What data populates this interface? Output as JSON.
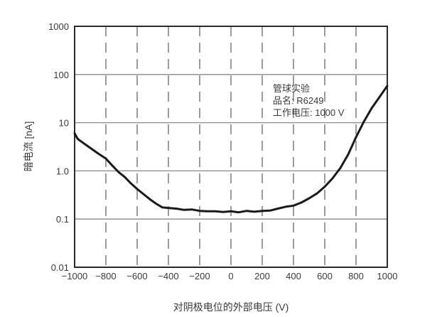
{
  "chart_data": {
    "type": "line",
    "title": "",
    "xlabel": "对阴极电位的外部电压 (V)",
    "ylabel": "暗电流 [nA]",
    "xlim": [
      -1000,
      1000
    ],
    "ylim": [
      0.01,
      1000
    ],
    "yscale": "log",
    "grid": {
      "x": "dashed",
      "y": "solid"
    },
    "xticks": [
      -1000,
      -800,
      -600,
      -400,
      -200,
      0,
      200,
      400,
      600,
      800,
      1000
    ],
    "xtick_labels": [
      "−1000",
      "−800",
      "−600",
      "−400",
      "−200",
      "0",
      "200",
      "400",
      "600",
      "800",
      "1000"
    ],
    "yticks": [
      0.01,
      0.1,
      1.0,
      10,
      100,
      1000
    ],
    "ytick_labels": [
      "0.01",
      "0.1",
      "1.0",
      "10",
      "100",
      "1000"
    ],
    "annotation": {
      "lines": [
        "管球实验",
        "品名: R6249",
        "工作电压: 1000 V"
      ]
    },
    "series": [
      {
        "name": "R6249 dark current",
        "x": [
          -1000,
          -980,
          -950,
          -900,
          -850,
          -800,
          -760,
          -720,
          -680,
          -640,
          -600,
          -560,
          -520,
          -480,
          -440,
          -400,
          -350,
          -300,
          -250,
          -200,
          -150,
          -100,
          -50,
          0,
          50,
          100,
          150,
          200,
          250,
          300,
          350,
          400,
          450,
          500,
          550,
          600,
          650,
          700,
          750,
          800,
          850,
          900,
          950,
          1000
        ],
        "y": [
          6.0,
          4.6,
          3.9,
          3.0,
          2.3,
          1.8,
          1.3,
          0.95,
          0.75,
          0.55,
          0.42,
          0.33,
          0.26,
          0.21,
          0.175,
          0.17,
          0.165,
          0.155,
          0.158,
          0.148,
          0.145,
          0.145,
          0.14,
          0.145,
          0.138,
          0.148,
          0.142,
          0.148,
          0.15,
          0.165,
          0.18,
          0.19,
          0.22,
          0.27,
          0.34,
          0.47,
          0.7,
          1.15,
          2.2,
          5.0,
          10.5,
          20.0,
          34.0,
          58.0
        ]
      }
    ]
  }
}
